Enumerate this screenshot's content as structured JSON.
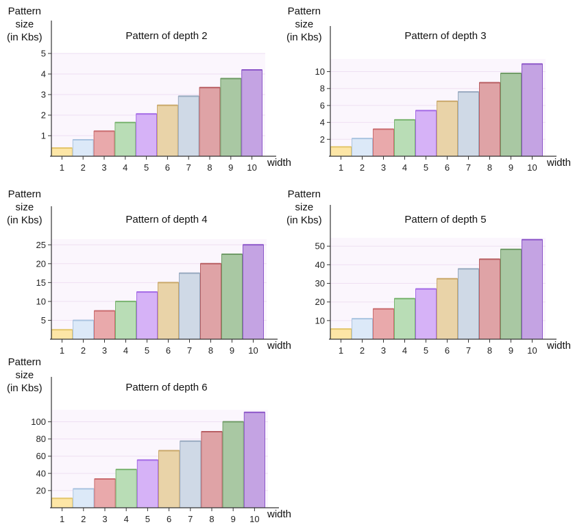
{
  "palette": [
    "#fde6a6",
    "#dce9f8",
    "#e9a9ab",
    "#b9ddb6",
    "#d6b2f7",
    "#e9d3a8",
    "#cfd9e6",
    "#dfa3a6",
    "#a9c8a3",
    "#c4a3e3"
  ],
  "strokes": [
    "#e3c56a",
    "#a9c3e0",
    "#c96b6e",
    "#79b36f",
    "#a369e6",
    "#c9a86a",
    "#97a9bf",
    "#b85e62",
    "#6f9b66",
    "#8c56c9"
  ],
  "chart_data": [
    {
      "type": "bar",
      "title": "Pattern of depth 2",
      "ylabel": "Pattern\nsize\n(in Kbs)",
      "xlabel": "width",
      "categories": [
        "1",
        "2",
        "3",
        "4",
        "5",
        "6",
        "7",
        "8",
        "9",
        "10"
      ],
      "values": [
        0.4,
        0.8,
        1.22,
        1.64,
        2.06,
        2.48,
        2.92,
        3.34,
        3.78,
        4.2
      ],
      "ylim": [
        0,
        5
      ],
      "yticks": [
        1,
        2,
        3,
        4,
        5
      ],
      "ytick_labels": [
        "1",
        "2",
        "3",
        "4",
        "5"
      ]
    },
    {
      "type": "bar",
      "title": "Pattern of depth 3",
      "ylabel": "Pattern\nsize\n(in Kbs)",
      "xlabel": "width",
      "categories": [
        "1",
        "2",
        "3",
        "4",
        "5",
        "6",
        "7",
        "8",
        "9",
        "10"
      ],
      "values": [
        1.1,
        2.1,
        3.2,
        4.3,
        5.4,
        6.5,
        7.6,
        8.7,
        9.8,
        10.9
      ],
      "ylim": [
        0,
        11.5
      ],
      "yticks": [
        2,
        4,
        6,
        8,
        10
      ],
      "ytick_labels": [
        "2",
        "4",
        "6",
        "8",
        "10"
      ]
    },
    {
      "type": "bar",
      "title": "Pattern of depth 4",
      "ylabel": "Pattern\nsize\n(in Kbs)",
      "xlabel": "width",
      "categories": [
        "1",
        "2",
        "3",
        "4",
        "5",
        "6",
        "7",
        "8",
        "9",
        "10"
      ],
      "values": [
        2.5,
        5,
        7.5,
        10,
        12.5,
        15,
        17.5,
        20,
        22.5,
        25
      ],
      "ylim": [
        0,
        26.5
      ],
      "yticks": [
        5,
        10,
        15,
        20,
        25
      ],
      "ytick_labels": [
        "5",
        "10",
        "15",
        "20",
        "25"
      ]
    },
    {
      "type": "bar",
      "title": "Pattern of depth 5",
      "ylabel": "Pattern\nsize\n(in Kbs)",
      "xlabel": "width",
      "categories": [
        "1",
        "2",
        "3",
        "4",
        "5",
        "6",
        "7",
        "8",
        "9",
        "10"
      ],
      "values": [
        5.5,
        11,
        16.3,
        21.8,
        27,
        32.5,
        37.8,
        43,
        48.3,
        53.5
      ],
      "ylim": [
        0,
        54.5
      ],
      "yticks": [
        10,
        20,
        30,
        40,
        50
      ],
      "ytick_labels": [
        "10",
        "20",
        "30",
        "40",
        "50"
      ]
    },
    {
      "type": "bar",
      "title": "Pattern of depth 6",
      "ylabel": "Pattern\nsize\n(in Kbs)",
      "xlabel": "width",
      "categories": [
        "1",
        "2",
        "3",
        "4",
        "5",
        "6",
        "7",
        "8",
        "9",
        "10"
      ],
      "values": [
        11,
        22,
        33.5,
        44.5,
        55.5,
        66.5,
        77.5,
        88.5,
        100,
        111
      ],
      "ylim": [
        0,
        114
      ],
      "yticks": [
        20,
        40,
        60,
        80,
        100
      ],
      "ytick_labels": [
        "20",
        "40",
        "60",
        "80",
        "100"
      ]
    }
  ]
}
